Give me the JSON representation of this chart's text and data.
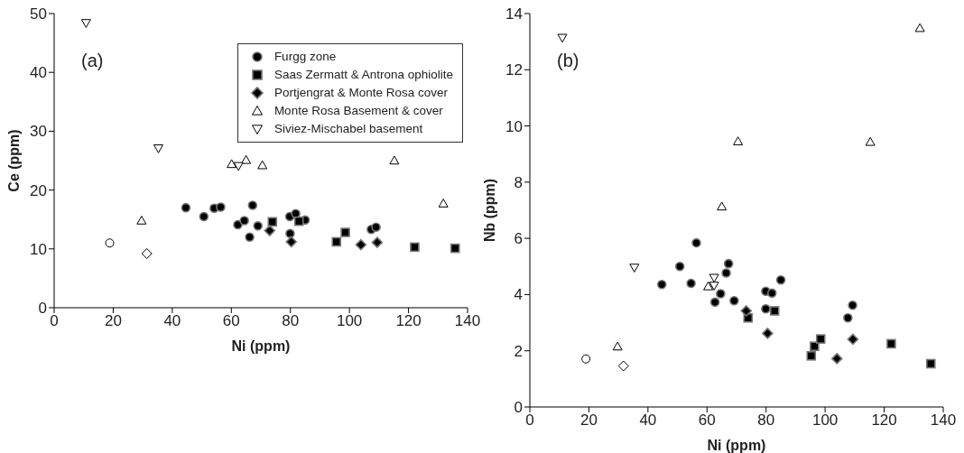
{
  "chart_data": [
    {
      "type": "scatter",
      "xlabel": "Ni (ppm)",
      "ylabel": "Ce (ppm)",
      "annotations": [
        "(a)"
      ],
      "xlim": [
        0,
        140
      ],
      "xticks": [
        0,
        20,
        40,
        60,
        80,
        100,
        120,
        140
      ],
      "ylim": [
        0,
        50
      ],
      "yticks": [
        0,
        10,
        20,
        30,
        40,
        50
      ],
      "grid": false,
      "legend": "top right",
      "series": [
        {
          "name": "Furgg zone",
          "marker": "circle",
          "color": "#000000",
          "x": [
            44.6,
            50.7,
            54.2,
            56.4,
            62.2,
            64.4,
            66.2,
            67.2,
            69.0,
            79.8,
            81.8,
            79.9,
            85.0,
            107.4,
            109.0
          ],
          "values": [
            17.0,
            15.5,
            16.9,
            17.1,
            14.1,
            14.8,
            12.0,
            17.4,
            13.9,
            15.5,
            16.0,
            12.6,
            14.9,
            13.3,
            13.7
          ]
        },
        {
          "name": "Saas Zermatt & Antrona ophiolite",
          "marker": "square",
          "color": "#000000",
          "x": [
            73.9,
            82.9,
            95.6,
            98.6,
            122.1,
            135.8
          ],
          "values": [
            14.6,
            14.7,
            11.2,
            12.8,
            10.3,
            10.1
          ]
        },
        {
          "name": "Portjengrat & Monte Rosa cover",
          "marker": "diamond",
          "color": "#000000",
          "x": [
            73.0,
            80.3,
            103.9,
            109.4
          ],
          "values": [
            13.1,
            11.2,
            10.7,
            11.1
          ]
        },
        {
          "name": "Monte Rosa Basement & cover",
          "marker": "triangle",
          "color": "#ffffff",
          "x": [
            29.6,
            60.1,
            65.0,
            70.5,
            115.2,
            131.8
          ],
          "values": [
            14.8,
            24.4,
            25.1,
            24.2,
            25.0,
            17.7
          ]
        },
        {
          "name": "Siviez-Mischabel basement",
          "marker": "triangle-down",
          "color": "#ffffff",
          "x": [
            10.8,
            35.3,
            62.4
          ],
          "values": [
            48.4,
            27.1,
            24.1
          ]
        },
        {
          "marker": "circle",
          "color": "#ffffff",
          "x": [
            18.8
          ],
          "values": [
            11.0
          ]
        },
        {
          "marker": "diamond",
          "color": "#ffffff",
          "x": [
            31.4
          ],
          "values": [
            9.2
          ]
        }
      ]
    },
    {
      "type": "scatter",
      "xlabel": "Ni (ppm)",
      "ylabel": "Nb (ppm)",
      "annotations": [
        "(b)"
      ],
      "xlim": [
        0,
        140
      ],
      "xticks": [
        0,
        20,
        40,
        60,
        80,
        100,
        120,
        140
      ],
      "ylim": [
        0,
        14
      ],
      "yticks": [
        0,
        2,
        4,
        6,
        8,
        10,
        12,
        14
      ],
      "grid": false,
      "series": [
        {
          "marker": "circle",
          "color": "#000000",
          "x": [
            44.7,
            50.8,
            54.6,
            56.4,
            62.7,
            64.6,
            66.5,
            67.3,
            69.2,
            79.9,
            82.0,
            79.9,
            85.0,
            107.7,
            109.3
          ],
          "values": [
            4.36,
            5.0,
            4.4,
            5.84,
            3.73,
            4.03,
            4.77,
            5.1,
            3.78,
            4.12,
            4.05,
            3.49,
            4.52,
            3.17,
            3.62
          ]
        },
        {
          "marker": "square",
          "color": "#000000",
          "x": [
            73.9,
            82.9,
            95.3,
            96.4,
            98.5,
            122.4,
            135.8
          ],
          "values": [
            3.17,
            3.42,
            1.82,
            2.16,
            2.42,
            2.25,
            1.54
          ]
        },
        {
          "marker": "diamond",
          "color": "#000000",
          "x": [
            73.3,
            80.5,
            104.0,
            109.4
          ],
          "values": [
            3.42,
            2.62,
            1.72,
            2.41
          ]
        },
        {
          "marker": "triangle",
          "color": "#ffffff",
          "x": [
            29.7,
            60.4,
            65.0,
            70.5,
            115.3,
            132.1
          ],
          "values": [
            2.15,
            4.29,
            7.13,
            9.45,
            9.43,
            13.48
          ]
        },
        {
          "marker": "triangle-down",
          "color": "#ffffff",
          "x": [
            11.0,
            35.4,
            62.4,
            62.4
          ],
          "values": [
            13.14,
            4.96,
            4.6,
            4.32
          ]
        },
        {
          "marker": "circle",
          "color": "#ffffff",
          "x": [
            19.0
          ],
          "values": [
            1.71
          ]
        },
        {
          "marker": "diamond",
          "color": "#ffffff",
          "x": [
            31.7
          ],
          "values": [
            1.46
          ]
        }
      ]
    }
  ]
}
